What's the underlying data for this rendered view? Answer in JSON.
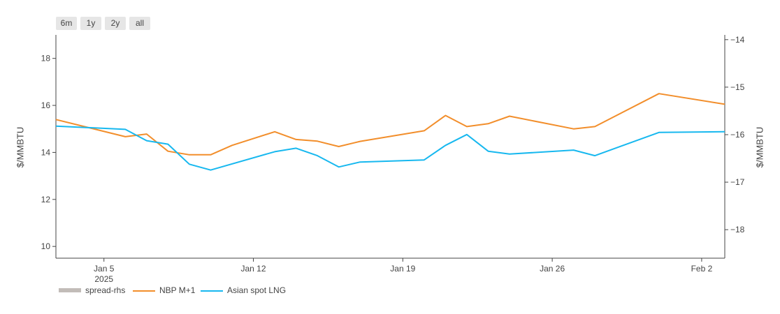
{
  "range_buttons": [
    "6m",
    "1y",
    "2y",
    "all"
  ],
  "colors": {
    "spread": "#c2bcb8",
    "nbp": "#f28e2b",
    "asian": "#17b8ef",
    "axis": "#444444"
  },
  "chart_data": {
    "type": "line",
    "x_type": "date",
    "ylabel": "$/MMBTU",
    "y2label": "$/MMBTU",
    "ylim": [
      9.5,
      19.0
    ],
    "y2lim": [
      -18.6,
      -13.9
    ],
    "yticks": [
      10,
      12,
      14,
      16,
      18
    ],
    "y2ticks": [
      -18,
      -17,
      -16,
      -15,
      -14
    ],
    "y2tick_labels": [
      "−18",
      "−17",
      "−16",
      "−15",
      "−14"
    ],
    "xlim": [
      "2025-01-02 18:00",
      "2025-02-03 02:00"
    ],
    "xticks": [
      {
        "date": "2025-01-05",
        "label": "Jan 5",
        "sublabel": "2025"
      },
      {
        "date": "2025-01-12",
        "label": "Jan 12",
        "sublabel": ""
      },
      {
        "date": "2025-01-19",
        "label": "Jan 19",
        "sublabel": ""
      },
      {
        "date": "2025-01-26",
        "label": "Jan 26",
        "sublabel": ""
      },
      {
        "date": "2025-02-02",
        "label": "Feb 2",
        "sublabel": ""
      }
    ],
    "grid": false,
    "legend_position": "bottom-left",
    "series": [
      {
        "name": "spread-rhs",
        "axis": "y2",
        "x": [],
        "values": []
      },
      {
        "name": "NBP M+1",
        "axis": "y",
        "x": [
          "2025-01-02 18:00",
          "2025-01-06",
          "2025-01-07",
          "2025-01-08",
          "2025-01-09",
          "2025-01-10",
          "2025-01-11",
          "2025-01-13",
          "2025-01-14",
          "2025-01-15",
          "2025-01-16",
          "2025-01-17",
          "2025-01-20",
          "2025-01-21",
          "2025-01-22",
          "2025-01-23",
          "2025-01-24",
          "2025-01-27",
          "2025-01-28",
          "2025-01-31",
          "2025-02-03 02:00"
        ],
        "values": [
          15.4,
          14.67,
          14.78,
          14.05,
          13.9,
          13.9,
          14.3,
          14.88,
          14.55,
          14.48,
          14.25,
          14.47,
          14.92,
          15.57,
          15.1,
          15.22,
          15.54,
          15.0,
          15.1,
          16.5,
          16.05
        ]
      },
      {
        "name": "Asian spot LNG",
        "axis": "y",
        "x": [
          "2025-01-02 18:00",
          "2025-01-06",
          "2025-01-07",
          "2025-01-08",
          "2025-01-09",
          "2025-01-10",
          "2025-01-13",
          "2025-01-14",
          "2025-01-15",
          "2025-01-16",
          "2025-01-17",
          "2025-01-20",
          "2025-01-21",
          "2025-01-22",
          "2025-01-23",
          "2025-01-24",
          "2025-01-27",
          "2025-01-28",
          "2025-01-31",
          "2025-02-03 02:00"
        ],
        "values": [
          15.12,
          14.98,
          14.5,
          14.35,
          13.5,
          13.25,
          14.03,
          14.18,
          13.86,
          13.38,
          13.59,
          13.68,
          14.3,
          14.76,
          14.05,
          13.93,
          14.1,
          13.86,
          14.85,
          14.88
        ]
      }
    ]
  }
}
